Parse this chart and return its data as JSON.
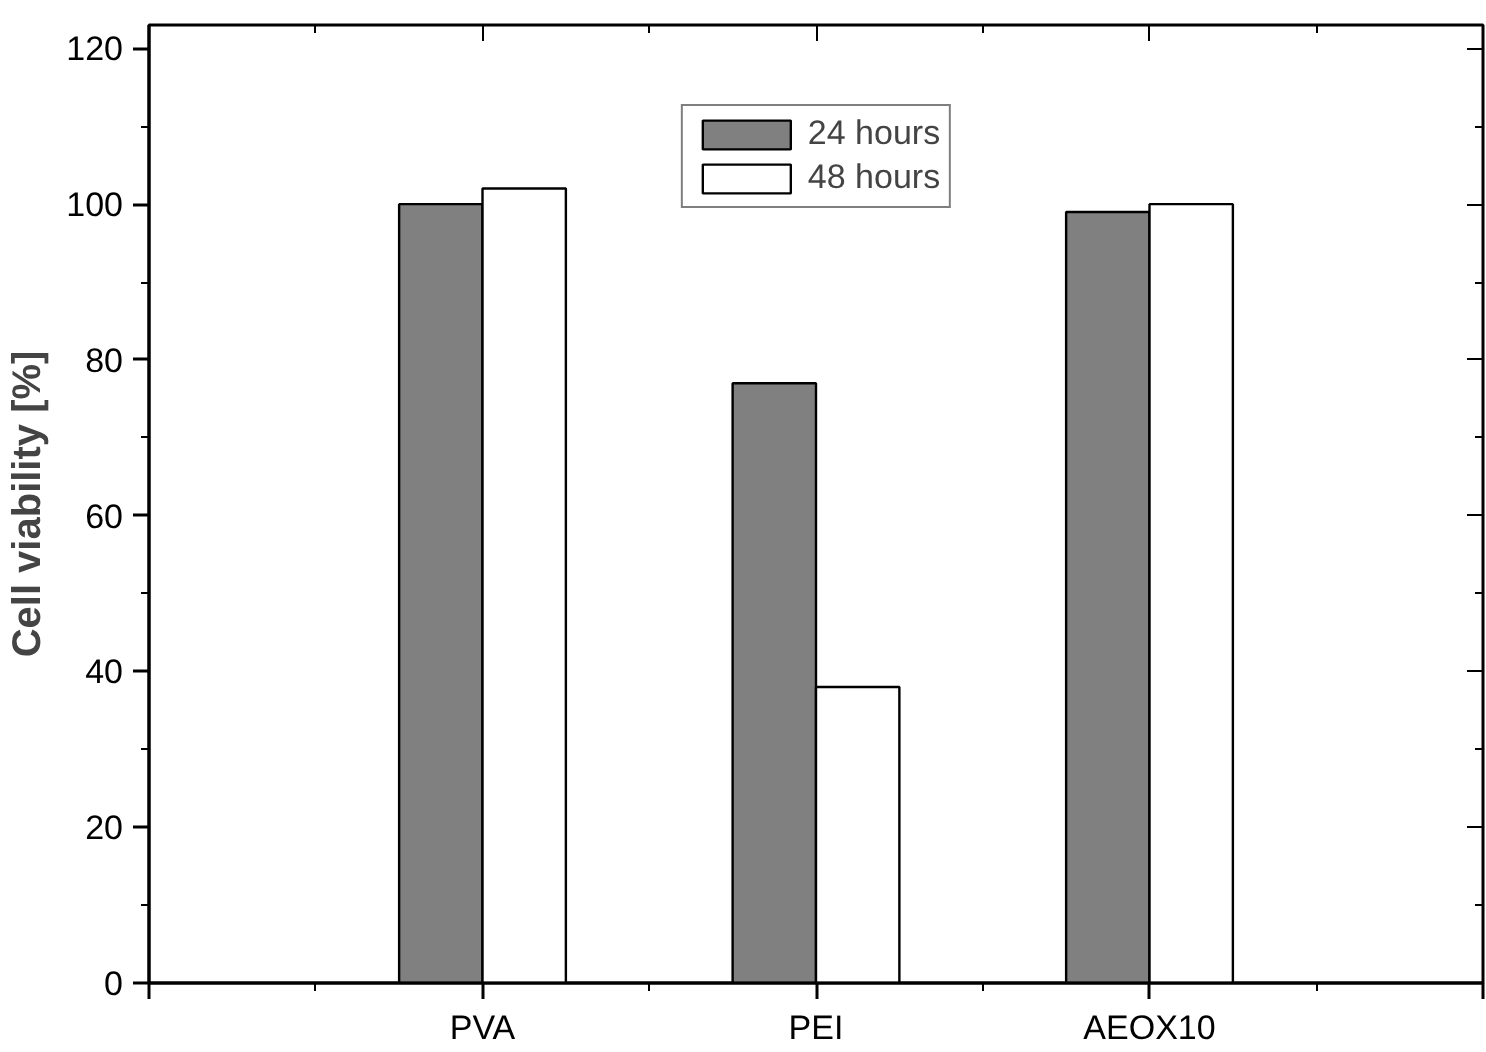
{
  "chart_data": {
    "type": "bar",
    "ylabel": "Cell viability [%]",
    "categories": [
      "PVA",
      "PEI",
      "AEOX10"
    ],
    "series": [
      {
        "name": "24 hours",
        "color": "#808080",
        "values": [
          100,
          77,
          99
        ]
      },
      {
        "name": "48 hours",
        "color": "#ffffff",
        "values": [
          102,
          38,
          100
        ]
      }
    ],
    "ylim": [
      0,
      123
    ],
    "yticks": [
      0,
      {
        "value": 10,
        "label": null
      },
      20,
      {
        "value": 30,
        "label": null
      },
      40,
      {
        "value": 50,
        "label": null
      },
      60,
      {
        "value": 70,
        "label": null
      },
      80,
      {
        "value": 90,
        "label": null
      },
      100,
      {
        "value": 110,
        "label": null
      },
      120
    ],
    "grid": false,
    "legend": "top"
  }
}
